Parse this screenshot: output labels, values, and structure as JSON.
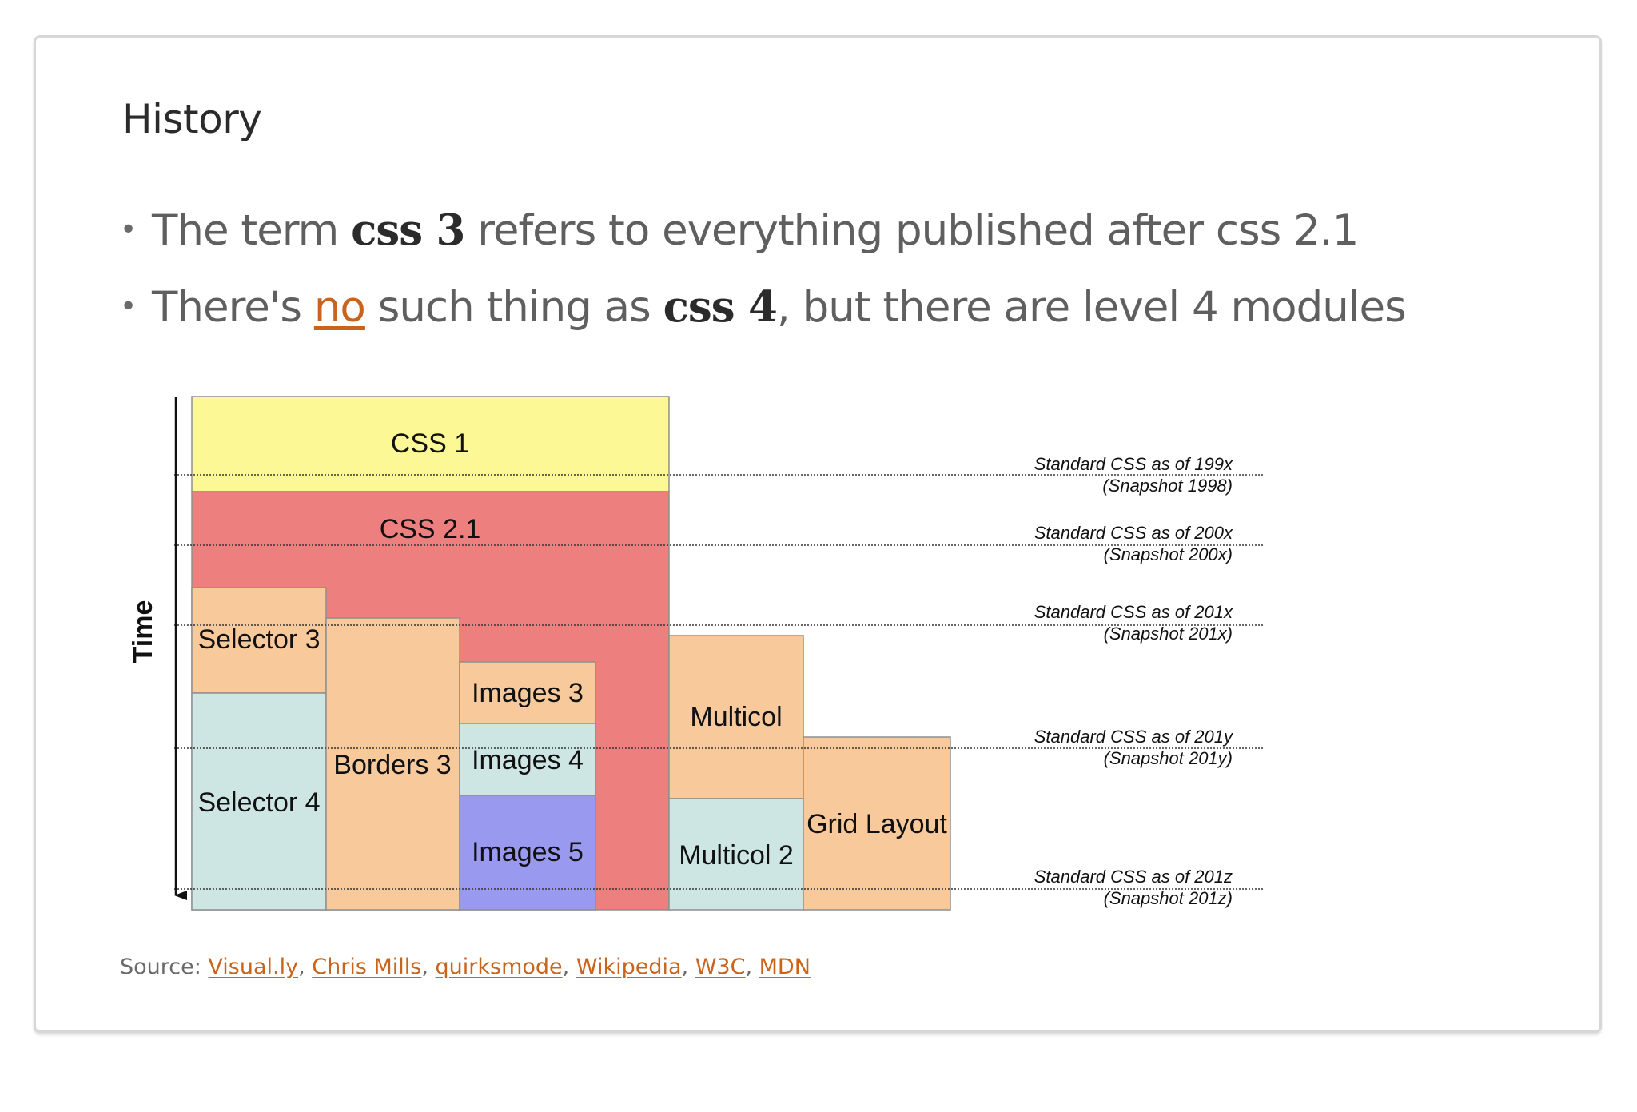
{
  "slide": {
    "title": "History",
    "bullets": [
      {
        "t1": "The term ",
        "kw1": "css 3",
        "t2": " refers to everything published after css 2.1",
        "link": "",
        "t3": "",
        "kw2": "",
        "t4": ""
      },
      {
        "t1": "There's ",
        "link": "no",
        "t2": " such thing as ",
        "kw1": "css 4",
        "t3": ", but there are level 4 modules",
        "kw2": "",
        "t4": ""
      }
    ]
  },
  "diagram": {
    "axis_label": "Time",
    "blocks": [
      {
        "label": "CSS 1",
        "color": "#fdf896"
      },
      {
        "label": "CSS 2.1",
        "color": "#ee7f7f"
      },
      {
        "label": "Selector 3",
        "color": "#f8c99b"
      },
      {
        "label": "Selector 4",
        "color": "#cde6e3"
      },
      {
        "label": "Borders 3",
        "color": "#f8c99b"
      },
      {
        "label": "Images 3",
        "color": "#f8c99b"
      },
      {
        "label": "Images 4",
        "color": "#cde6e3"
      },
      {
        "label": "Images 5",
        "color": "#9999f0"
      },
      {
        "label": "Multicol",
        "color": "#f8c99b"
      },
      {
        "label": "Multicol 2",
        "color": "#cde6e3"
      },
      {
        "label": "Grid Layout",
        "color": "#f8c99b"
      }
    ],
    "snapshots": [
      {
        "line1": "Standard CSS as of 199x",
        "line2": "(Snapshot 1998)"
      },
      {
        "line1": "Standard CSS as of 200x",
        "line2": "(Snapshot 200x)"
      },
      {
        "line1": "Standard CSS as of 201x",
        "line2": "(Snapshot 201x)"
      },
      {
        "line1": "Standard CSS as of 201y",
        "line2": "(Snapshot 201y)"
      },
      {
        "line1": "Standard CSS as of 201z",
        "line2": "(Snapshot 201z)"
      }
    ]
  },
  "source": {
    "label": "Source: ",
    "links": [
      "Visual.ly",
      "Chris Mills",
      "quirksmode",
      "Wikipedia",
      "W3C",
      "MDN"
    ]
  }
}
